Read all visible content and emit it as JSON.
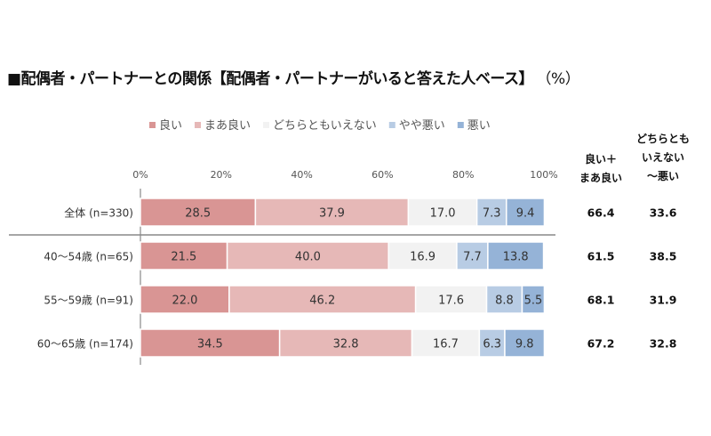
{
  "title": "■配偶者・パートナーとの関係【配偶者・パートナーがいると答えた人ベース】",
  "unit": "（%）",
  "chart_data": {
    "type": "bar",
    "orientation": "horizontal-stacked-100",
    "legend_position": "top",
    "x_ticks": [
      "0%",
      "20%",
      "40%",
      "60%",
      "80%",
      "100%"
    ],
    "xlim": [
      0,
      100
    ],
    "series": [
      {
        "name": "良い",
        "color": "#d99594",
        "values": [
          28.5,
          21.5,
          22.0,
          34.5
        ]
      },
      {
        "name": "まあ良い",
        "color": "#e6b8b7",
        "values": [
          37.9,
          40.0,
          46.2,
          32.8
        ]
      },
      {
        "name": "どちらともいえない",
        "color": "#f2f2f2",
        "values": [
          17.0,
          16.9,
          17.6,
          16.7
        ]
      },
      {
        "name": "やや悪い",
        "color": "#b8cce4",
        "values": [
          7.3,
          7.7,
          8.8,
          6.3
        ]
      },
      {
        "name": "悪い",
        "color": "#95b3d7",
        "values": [
          9.4,
          13.8,
          5.5,
          9.8
        ]
      }
    ],
    "categories": [
      "全体 (n=330)",
      "40〜54歳 (n=65)",
      "55〜59歳 (n=91)",
      "60〜65歳 (n=174)"
    ],
    "summary_columns": [
      {
        "header": [
          "良い＋",
          "まあ良い"
        ],
        "values": [
          "66.4",
          "61.5",
          "68.1",
          "67.2"
        ]
      },
      {
        "header": [
          "どちらとも",
          "いえない",
          "〜悪い"
        ],
        "values": [
          "33.6",
          "38.5",
          "31.9",
          "32.8"
        ]
      }
    ]
  }
}
